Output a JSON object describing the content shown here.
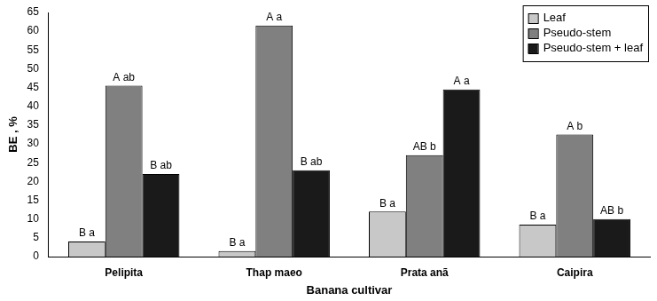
{
  "chart_data": {
    "type": "bar",
    "x_label": "Banana cultivar",
    "y_label": "BE , %",
    "categories": [
      "Pelipita",
      "Thap maeo",
      "Prata anã",
      "Caipira"
    ],
    "series": [
      {
        "name": "Leaf",
        "color": "#c8c8c8",
        "values": [
          4,
          1.5,
          12,
          8.5
        ],
        "annotations": [
          "B a",
          "B a",
          "B a",
          "B a"
        ]
      },
      {
        "name": "Pseudo-stem",
        "color": "#808080",
        "values": [
          45.5,
          61.5,
          27,
          32.5
        ],
        "annotations": [
          "A ab",
          "A a",
          "AB b",
          "A b"
        ]
      },
      {
        "name": "Pseudo-stem + leaf",
        "color": "#1a1a1a",
        "values": [
          22,
          23,
          44.5,
          10
        ],
        "annotations": [
          "B ab",
          "B ab",
          "A a",
          "AB b"
        ]
      }
    ],
    "ylim": [
      0,
      65
    ],
    "yticks": [
      0,
      5,
      10,
      15,
      20,
      25,
      30,
      35,
      40,
      45,
      50,
      55,
      60,
      65
    ],
    "grid": false,
    "legend": "upper right"
  }
}
